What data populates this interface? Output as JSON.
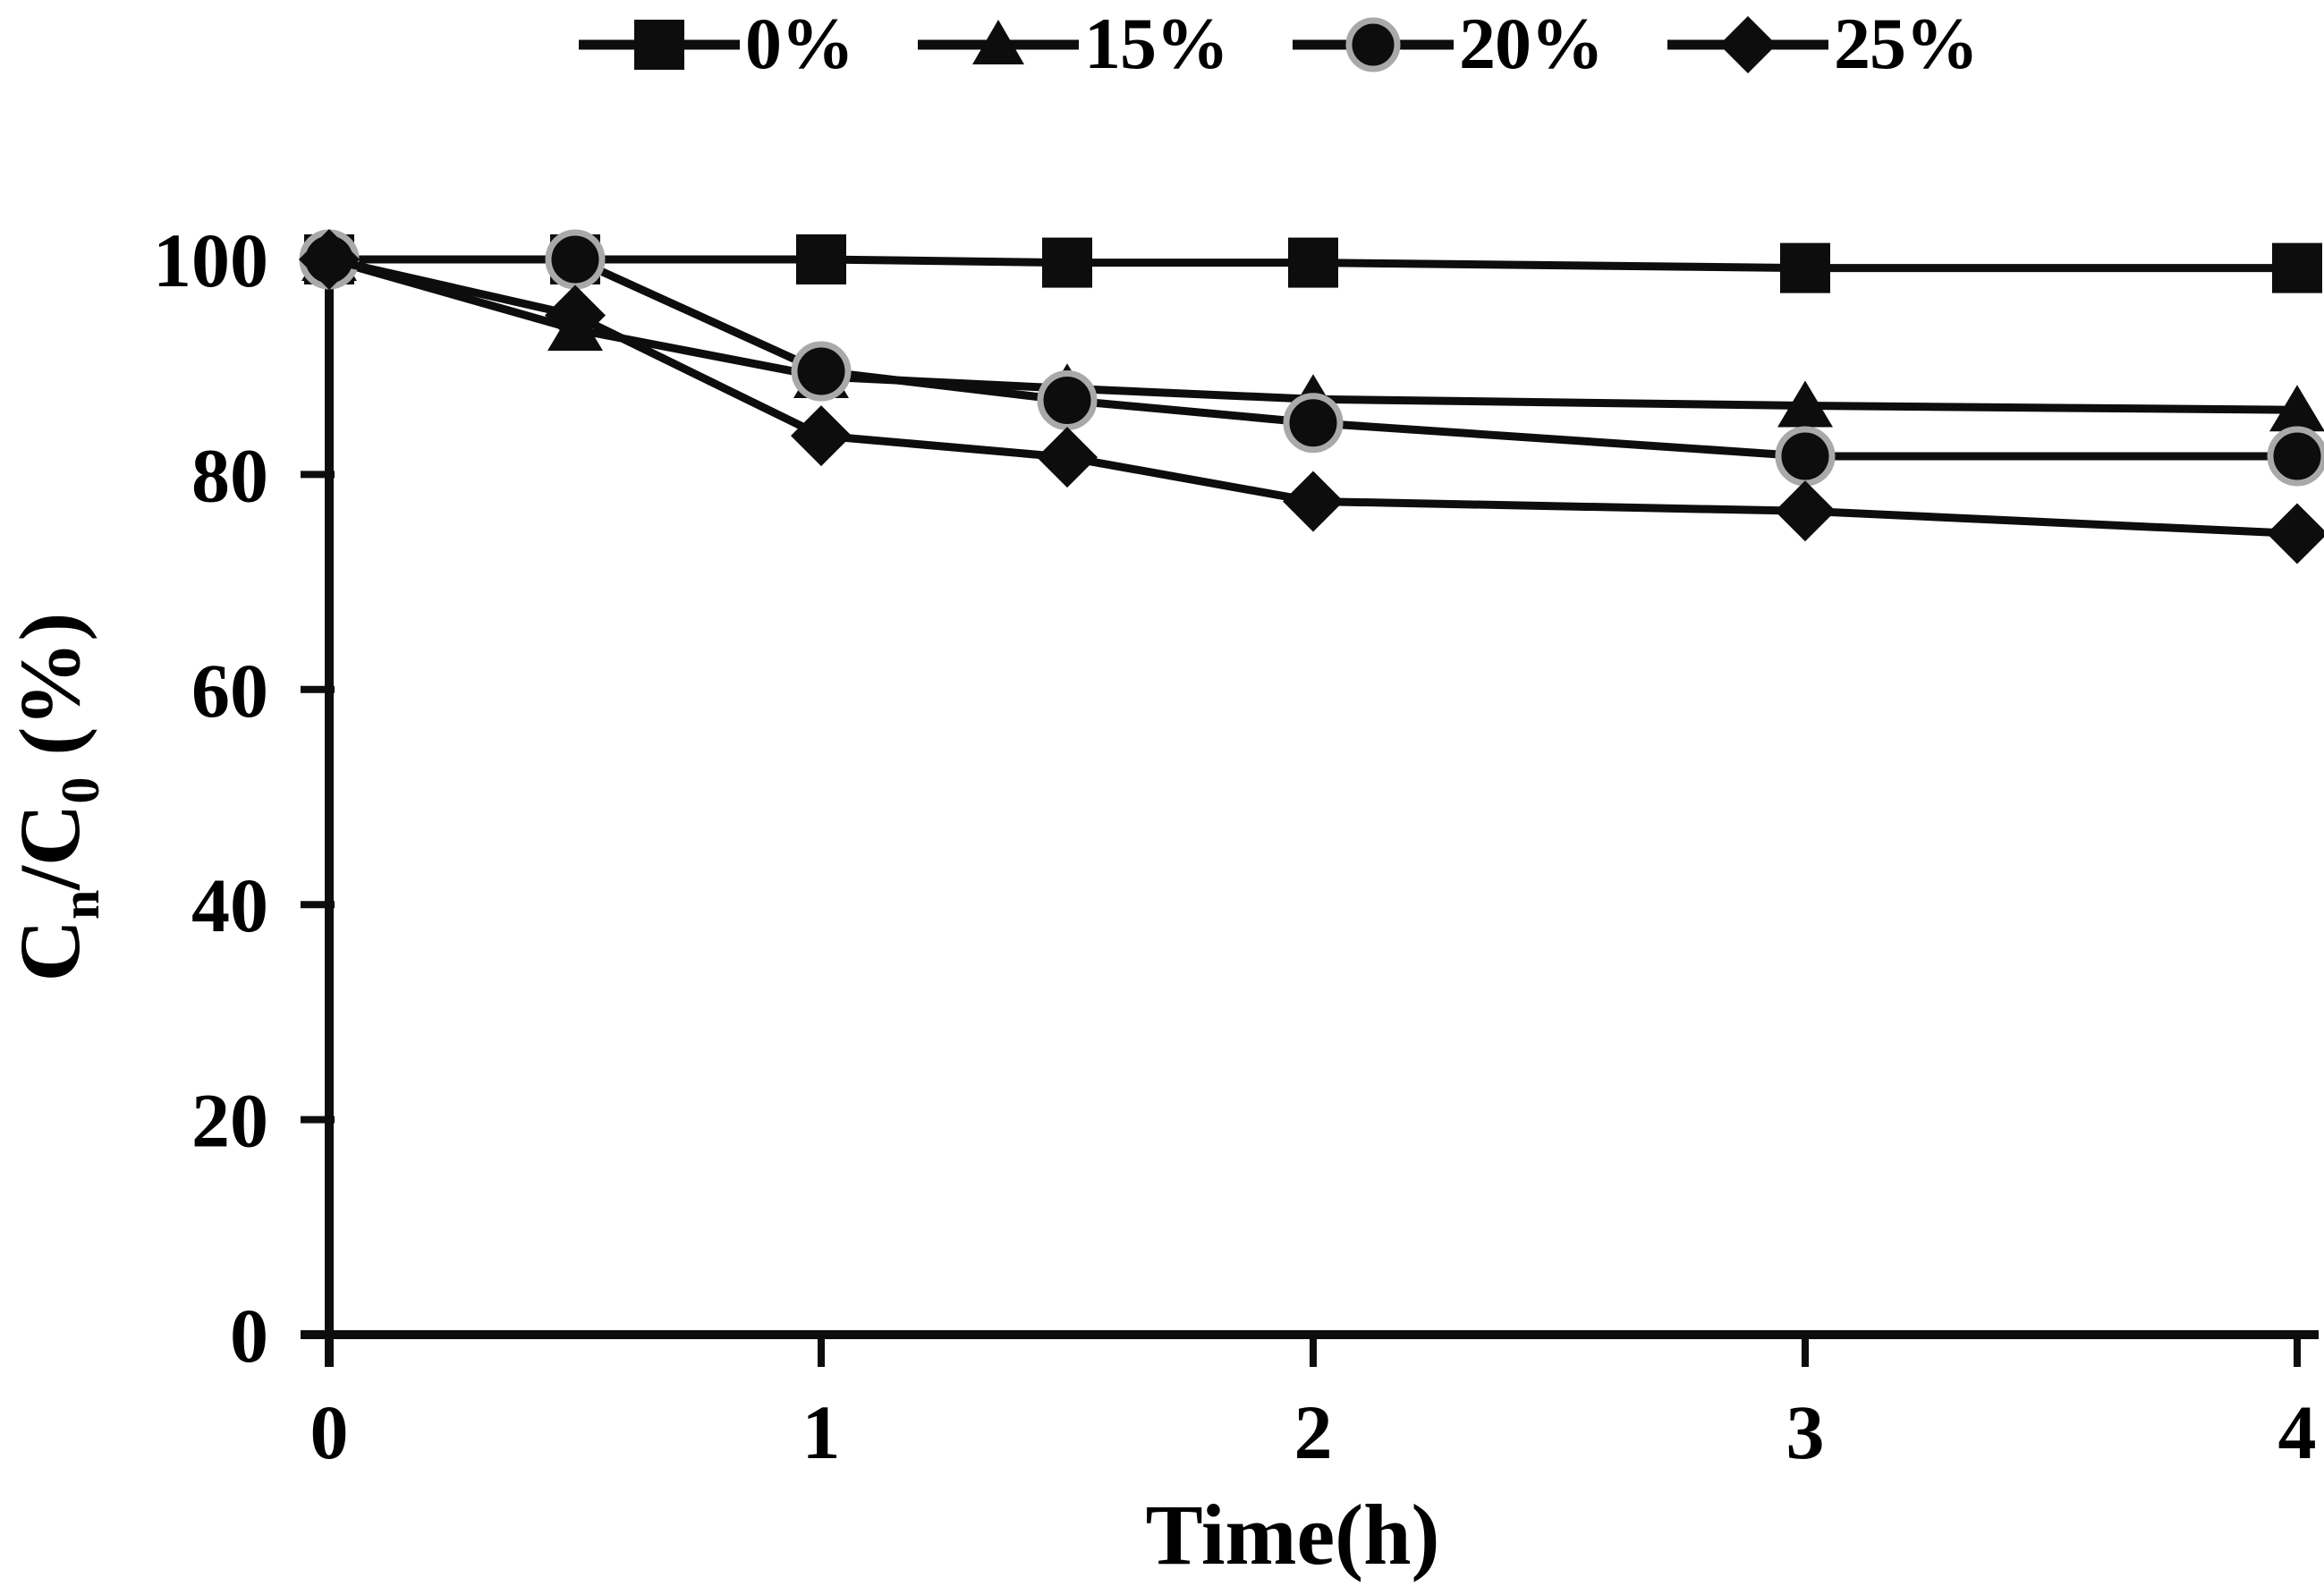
{
  "figure": {
    "background": "#ffffff",
    "ink_color": "#0d0d0d",
    "circle_ring_color": "#a9a9a9"
  },
  "chart_data": {
    "type": "line",
    "title": "",
    "xlabel": "Time(h)",
    "ylabel_plain": "Cn/C0 (%)",
    "ylabel_parts": [
      {
        "t": "C"
      },
      {
        "t": "n",
        "sub": true
      },
      {
        "t": "/C"
      },
      {
        "t": "0",
        "sub": true
      },
      {
        "t": " (%)"
      }
    ],
    "x": [
      0,
      0.5,
      1,
      1.5,
      2,
      3,
      4
    ],
    "xlim": [
      0,
      4
    ],
    "ylim": [
      0,
      100
    ],
    "xticks": [
      "0",
      "1",
      "2",
      "3",
      "4"
    ],
    "xtick_values": [
      0,
      1,
      2,
      3,
      4
    ],
    "yticks": [
      "0",
      "20",
      "40",
      "60",
      "80",
      "100"
    ],
    "ytick_values": [
      0,
      20,
      40,
      60,
      80,
      100
    ],
    "grid": false,
    "legend_position": "top",
    "series": [
      {
        "name": "0%",
        "marker": "square",
        "values": [
          100,
          100,
          100,
          99.7,
          99.7,
          99.2,
          99.2
        ]
      },
      {
        "name": "15%",
        "marker": "triangle",
        "values": [
          100,
          93.5,
          89.1,
          88.0,
          87.0,
          86.4,
          86.0
        ]
      },
      {
        "name": "20%",
        "marker": "circle",
        "values": [
          100,
          100,
          89.6,
          86.9,
          84.8,
          81.7,
          81.7
        ]
      },
      {
        "name": "25%",
        "marker": "diamond",
        "values": [
          100,
          94.8,
          83.6,
          81.6,
          77.5,
          76.6,
          74.5
        ]
      }
    ]
  }
}
